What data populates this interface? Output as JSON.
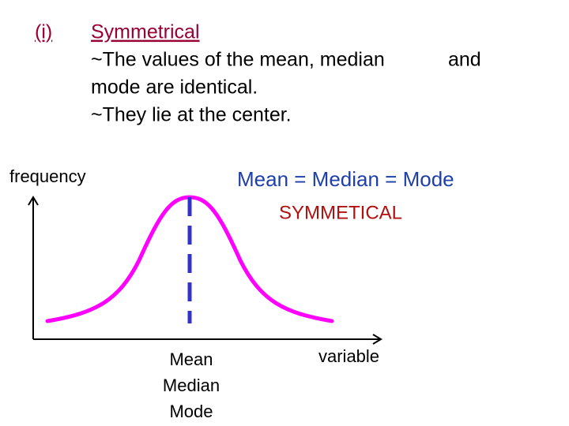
{
  "heading": {
    "marker": "(i)",
    "title": "Symmetrical",
    "lines": [
      "~The values of the mean, median",
      "and",
      "mode are identical.",
      "~They lie at the  center."
    ]
  },
  "diagram": {
    "y_axis_label": "frequency",
    "x_axis_label": "variable",
    "equation": "Mean = Median = Mode",
    "caption": "SYMMETICAL",
    "center_labels": [
      "Mean",
      "Median",
      "Mode"
    ]
  }
}
